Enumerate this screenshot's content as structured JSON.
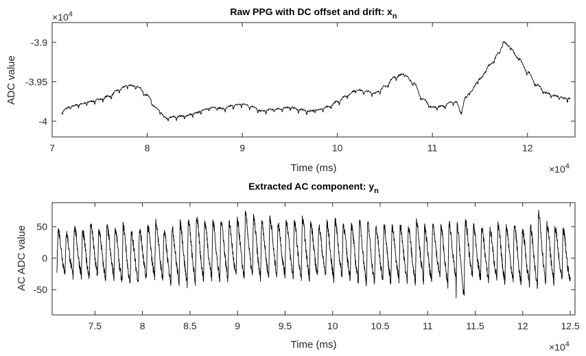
{
  "charts": [
    {
      "type": "line",
      "title": "Raw PPG with DC offset and drift: x",
      "title_subscript": "n",
      "xlabel": "Time (ms)",
      "ylabel": "ADC value",
      "x_exponent_prefix": "×10",
      "x_exponent": "4",
      "y_exponent_prefix": "×10",
      "y_exponent": "4",
      "xlim": [
        7.0,
        12.5
      ],
      "ylim": [
        -4.02,
        -3.875
      ],
      "xticks": [
        7,
        8,
        9,
        10,
        11,
        12
      ],
      "xtick_labels": [
        "7",
        "8",
        "9",
        "10",
        "11",
        "12"
      ],
      "yticks": [
        -4.0,
        -3.95,
        -3.9
      ],
      "ytick_labels": [
        "-4",
        "-3.95",
        "-3.9"
      ],
      "line_color": "#000000",
      "series": [
        {
          "x": [
            7.1,
            7.2,
            7.3,
            7.4,
            7.5,
            7.6,
            7.7,
            7.8,
            7.9,
            8.0,
            8.1,
            8.2,
            8.3,
            8.4,
            8.5,
            8.6,
            8.7,
            8.8,
            8.9,
            9.0,
            9.1,
            9.2,
            9.3,
            9.4,
            9.5,
            9.6,
            9.7,
            9.8,
            9.9,
            10.0,
            10.1,
            10.2,
            10.3,
            10.4,
            10.5,
            10.6,
            10.7,
            10.8,
            10.9,
            11.0,
            11.1,
            11.2,
            11.25,
            11.3,
            11.35,
            11.4,
            11.5,
            11.6,
            11.7,
            11.75,
            11.8,
            11.9,
            12.0,
            12.1,
            12.2,
            12.3,
            12.4,
            12.45
          ],
          "y": [
            -3.988,
            -3.982,
            -3.979,
            -3.976,
            -3.973,
            -3.969,
            -3.961,
            -3.955,
            -3.957,
            -3.968,
            -3.985,
            -3.997,
            -3.995,
            -3.994,
            -3.991,
            -3.986,
            -3.983,
            -3.985,
            -3.981,
            -3.979,
            -3.982,
            -3.988,
            -3.986,
            -3.985,
            -3.983,
            -3.986,
            -3.988,
            -3.986,
            -3.983,
            -3.976,
            -3.968,
            -3.961,
            -3.963,
            -3.965,
            -3.957,
            -3.945,
            -3.941,
            -3.952,
            -3.973,
            -3.983,
            -3.982,
            -3.977,
            -3.976,
            -3.989,
            -3.971,
            -3.963,
            -3.947,
            -3.93,
            -3.915,
            -3.9,
            -3.905,
            -3.92,
            -3.938,
            -3.955,
            -3.965,
            -3.969,
            -3.972,
            -3.972
          ]
        }
      ]
    },
    {
      "type": "line",
      "title": "Extracted AC component: y",
      "title_subscript": "n",
      "xlabel": "Time (ms)",
      "ylabel": "AC ADC value",
      "x_exponent_prefix": "×10",
      "x_exponent": "4",
      "xlim": [
        7.05,
        12.55
      ],
      "ylim": [
        -90,
        88
      ],
      "xticks": [
        7.5,
        8,
        8.5,
        9,
        9.5,
        10,
        10.5,
        11,
        11.5,
        12,
        12.5
      ],
      "xtick_labels": [
        "7.5",
        "8",
        "8.5",
        "9",
        "9.5",
        "10",
        "10.5",
        "11",
        "11.5",
        "12",
        "12.5"
      ],
      "yticks": [
        -50,
        0,
        50
      ],
      "ytick_labels": [
        "-50",
        "0",
        "50"
      ],
      "line_color": "#000000",
      "series": [
        {
          "x_start": 7.1,
          "x_end": 12.5,
          "beat_period": 0.0857,
          "peak_values": [
            45,
            40,
            50,
            42,
            55,
            45,
            50,
            48,
            52,
            40,
            45,
            50,
            58,
            42,
            48,
            55,
            60,
            65,
            58,
            60,
            62,
            55,
            60,
            70,
            65,
            60,
            66,
            55,
            60,
            58,
            62,
            55,
            50,
            56,
            60,
            54,
            52,
            58,
            56,
            50,
            55,
            48,
            52,
            50,
            60,
            48,
            54,
            50,
            56,
            52,
            58,
            50,
            48,
            45,
            52,
            50,
            55,
            45,
            50,
            73,
            55,
            48,
            45,
            50,
            48,
            42,
            45,
            48
          ],
          "trough_values": [
            -25,
            -30,
            -28,
            -32,
            -30,
            -35,
            -30,
            -40,
            -45,
            -38,
            -35,
            -30,
            -35,
            -40,
            -38,
            -42,
            -40,
            -35,
            -32,
            -38,
            -35,
            -30,
            -33,
            -30,
            -35,
            -32,
            -30,
            -28,
            -30,
            -35,
            -32,
            -30,
            -28,
            -35,
            -30,
            -32,
            -38,
            -40,
            -42,
            -35,
            -40,
            -35,
            -38,
            -40,
            -35,
            -40,
            -30,
            -45,
            -35,
            -65,
            -30,
            -35,
            -38,
            -32,
            -40,
            -35,
            -45,
            -40,
            -50,
            -42,
            -38,
            -35,
            -40,
            -30,
            -35,
            -32,
            -38,
            -30
          ]
        }
      ]
    }
  ]
}
